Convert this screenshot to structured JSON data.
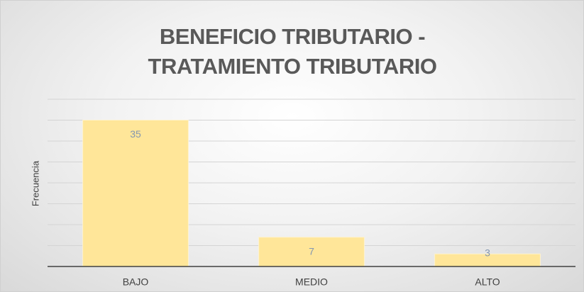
{
  "chart_data": {
    "type": "bar",
    "title": "BENEFICIO TRIBUTARIO - TRATAMIENTO TRIBUTARIO",
    "y_label": "Frecuencia",
    "categories": [
      "BAJO",
      "MEDIO",
      "ALTO"
    ],
    "values": [
      35,
      7,
      3
    ],
    "color": "#ffe699",
    "ylim": [
      0,
      40
    ],
    "yticks": [
      0,
      5,
      10,
      15,
      20,
      25,
      30,
      35,
      40
    ],
    "grid": true
  }
}
